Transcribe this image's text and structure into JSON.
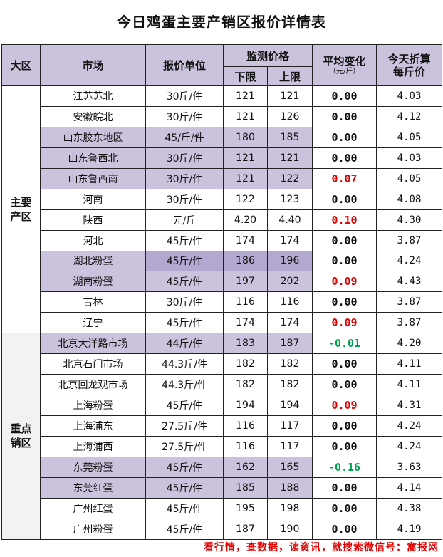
{
  "title": "今日鸡蛋主要产销区报价详情表",
  "headers": {
    "region": "大区",
    "market": "市场",
    "unit": "报价单位",
    "monitor": "监测价格",
    "low": "下限",
    "high": "上限",
    "change_line1": "平均变化",
    "change_line2": "（元/斤）",
    "price_line1": "今天折算",
    "price_line2": "每斤价"
  },
  "groups": [
    {
      "region": "主要产区",
      "rows": [
        {
          "market": "江苏苏北",
          "unit": "30斤/件",
          "low": "121",
          "high": "121",
          "change": "0.00",
          "price": "4.03"
        },
        {
          "market": "安徽皖北",
          "unit": "30斤/件",
          "low": "121",
          "high": "126",
          "change": "0.00",
          "price": "4.12"
        },
        {
          "market": "山东胶东地区",
          "unit": "45/斤/件",
          "low": "180",
          "high": "185",
          "change": "0.00",
          "price": "4.05"
        },
        {
          "market": "山东鲁西北",
          "unit": "30斤/件",
          "low": "121",
          "high": "121",
          "change": "0.00",
          "price": "4.03"
        },
        {
          "market": "山东鲁西南",
          "unit": "30斤/件",
          "low": "121",
          "high": "122",
          "change": "0.07",
          "price": "4.05"
        },
        {
          "market": "河南",
          "unit": "30斤/件",
          "low": "122",
          "high": "123",
          "change": "0.00",
          "price": "4.08"
        },
        {
          "market": "陕西",
          "unit": "元/斤",
          "low": "4.20",
          "high": "4.40",
          "change": "0.10",
          "price": "4.30"
        },
        {
          "market": "河北",
          "unit": "45斤/件",
          "low": "174",
          "high": "174",
          "change": "0.00",
          "price": "3.87"
        },
        {
          "market": "湖北粉蛋",
          "unit": "45斤/件",
          "low": "186",
          "high": "196",
          "change": "0.00",
          "price": "4.24"
        },
        {
          "market": "湖南粉蛋",
          "unit": "45斤/件",
          "low": "197",
          "high": "202",
          "change": "0.09",
          "price": "4.43"
        },
        {
          "market": "吉林",
          "unit": "30斤/件",
          "low": "116",
          "high": "116",
          "change": "0.00",
          "price": "3.87"
        },
        {
          "market": "辽宁",
          "unit": "45斤/件",
          "low": "174",
          "high": "174",
          "change": "0.09",
          "price": "3.87"
        }
      ]
    },
    {
      "region": "重点销区",
      "rows": [
        {
          "market": "北京大洋路市场",
          "unit": "44斤/件",
          "low": "183",
          "high": "187",
          "change": "-0.01",
          "price": "4.20"
        },
        {
          "market": "北京石门市场",
          "unit": "44.3斤/件",
          "low": "182",
          "high": "182",
          "change": "0.00",
          "price": "4.11"
        },
        {
          "market": "北京回龙观市场",
          "unit": "44.3斤/件",
          "low": "182",
          "high": "182",
          "change": "0.00",
          "price": "4.11"
        },
        {
          "market": "上海粉蛋",
          "unit": "45斤/件",
          "low": "194",
          "high": "194",
          "change": "0.09",
          "price": "4.31"
        },
        {
          "market": "上海浦东",
          "unit": "27.5斤/件",
          "low": "116",
          "high": "117",
          "change": "0.00",
          "price": "4.24"
        },
        {
          "market": "上海浦西",
          "unit": "27.5斤/件",
          "low": "116",
          "high": "117",
          "change": "0.00",
          "price": "4.24"
        },
        {
          "market": "东莞粉蛋",
          "unit": "45斤/件",
          "low": "162",
          "high": "165",
          "change": "-0.16",
          "price": "3.63"
        },
        {
          "market": "东莞红蛋",
          "unit": "45斤/件",
          "low": "185",
          "high": "188",
          "change": "0.00",
          "price": "4.14"
        },
        {
          "market": "广州红蛋",
          "unit": "45斤/件",
          "low": "195",
          "high": "198",
          "change": "0.00",
          "price": "4.38"
        },
        {
          "market": "广州粉蛋",
          "unit": "45斤/件",
          "low": "187",
          "high": "190",
          "change": "0.00",
          "price": "4.19"
        }
      ]
    }
  ],
  "footer": "看行情，查数据，读资讯，就搜索微信号：禽报网",
  "colors": {
    "header_bg": "#cbc3de",
    "band_bg": "#cbc3de",
    "band_dark_bg": "#b3a8d0",
    "up": "#e00000",
    "down": "#00a050"
  }
}
